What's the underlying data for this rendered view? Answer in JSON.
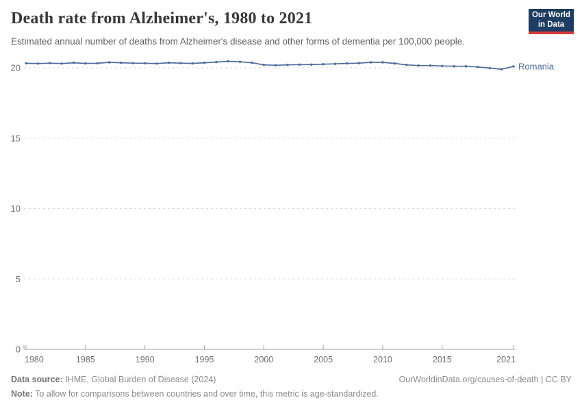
{
  "header": {
    "title": "Death rate from Alzheimer's, 1980 to 2021",
    "subtitle": "Estimated annual number of deaths from Alzheimer's disease and other forms of dementia per 100,000 people."
  },
  "logo": {
    "line1": "Our World",
    "line2": "in Data",
    "background": "#1d3d63",
    "stripe": "#d73a3a"
  },
  "chart_data": {
    "type": "line",
    "title": "Death rate from Alzheimer's, 1980 to 2021",
    "xlabel": "",
    "ylabel": "",
    "xlim": [
      1980,
      2021
    ],
    "ylim": [
      0,
      20
    ],
    "yticks": [
      0,
      5,
      10,
      15,
      20
    ],
    "xticks": [
      1980,
      1985,
      1990,
      1995,
      2000,
      2005,
      2010,
      2015,
      2021
    ],
    "grid": "horizontal-dashed",
    "legend_position": "end-of-line-label",
    "series": [
      {
        "name": "Romania",
        "color": "#4c6a9c",
        "x": [
          1980,
          1981,
          1982,
          1983,
          1984,
          1985,
          1986,
          1987,
          1988,
          1989,
          1990,
          1991,
          1992,
          1993,
          1994,
          1995,
          1996,
          1997,
          1998,
          1999,
          2000,
          2001,
          2002,
          2003,
          2004,
          2005,
          2006,
          2007,
          2008,
          2009,
          2010,
          2011,
          2012,
          2013,
          2014,
          2015,
          2016,
          2017,
          2018,
          2019,
          2020,
          2021
        ],
        "values": [
          20.32,
          20.3,
          20.33,
          20.3,
          20.36,
          20.31,
          20.32,
          20.39,
          20.36,
          20.33,
          20.32,
          20.3,
          20.36,
          20.33,
          20.31,
          20.36,
          20.41,
          20.46,
          20.43,
          20.36,
          20.21,
          20.18,
          20.21,
          20.23,
          20.23,
          20.26,
          20.28,
          20.31,
          20.33,
          20.39,
          20.39,
          20.31,
          20.21,
          20.16,
          20.16,
          20.13,
          20.11,
          20.11,
          20.06,
          19.98,
          19.9,
          20.1
        ]
      }
    ]
  },
  "colors": {
    "line": "#4c6a9c",
    "grid": "#dadada",
    "axis": "#a3a3a3",
    "tick_label": "#6e6e6e",
    "entity_label": "#4c6a9c"
  },
  "footer": {
    "data_source_label": "Data source:",
    "data_source_value": " IHME, Global Burden of Disease (2024)",
    "link": "OurWorldinData.org/causes-of-death | CC BY",
    "note_label": "Note:",
    "note_value": " To allow for comparisons between countries and over time, this metric is age-standardized."
  }
}
